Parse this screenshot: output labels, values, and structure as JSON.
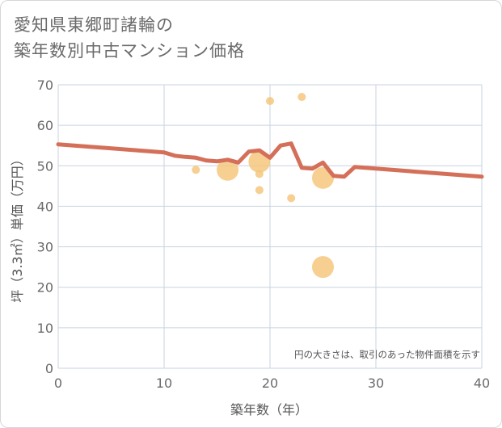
{
  "title_lines": [
    "愛知県東郷町諸輪の",
    "築年数別中古マンション価格"
  ],
  "chart_data": {
    "type": "scatter",
    "xlabel": "築年数（年）",
    "ylabel": "坪（3.3㎡）単価（万円）",
    "xlim": [
      0,
      40
    ],
    "ylim": [
      0,
      70
    ],
    "xticks": [
      0,
      10,
      20,
      30,
      40
    ],
    "yticks": [
      0,
      10,
      20,
      30,
      40,
      50,
      60,
      70
    ],
    "grid": true,
    "note": "円の大きさは、取引のあった物件面積を示す",
    "colors": {
      "line": "#d4705a",
      "bubble": "#f5c77e",
      "grid": "#c9d3e0"
    },
    "points": [
      {
        "x": 13,
        "y": 49,
        "size": 1
      },
      {
        "x": 16,
        "y": 49,
        "size": 4
      },
      {
        "x": 19,
        "y": 51,
        "size": 4
      },
      {
        "x": 19,
        "y": 48,
        "size": 1
      },
      {
        "x": 19,
        "y": 44,
        "size": 1
      },
      {
        "x": 20,
        "y": 66,
        "size": 1
      },
      {
        "x": 22,
        "y": 42,
        "size": 1
      },
      {
        "x": 23,
        "y": 67,
        "size": 1
      },
      {
        "x": 25,
        "y": 47,
        "size": 4
      },
      {
        "x": 25,
        "y": 25,
        "size": 4
      }
    ],
    "trend_line": {
      "x": [
        0,
        10,
        11,
        12,
        13,
        14,
        15,
        16,
        17,
        18,
        19,
        20,
        21,
        22,
        23,
        24,
        25,
        26,
        27,
        28,
        40
      ],
      "y": [
        55.3,
        53.3,
        52.5,
        52.2,
        52.0,
        51.3,
        51.1,
        51.5,
        50.8,
        53.5,
        53.8,
        52.0,
        55.0,
        55.5,
        49.5,
        49.3,
        50.8,
        47.5,
        47.3,
        49.7,
        47.3
      ]
    }
  }
}
